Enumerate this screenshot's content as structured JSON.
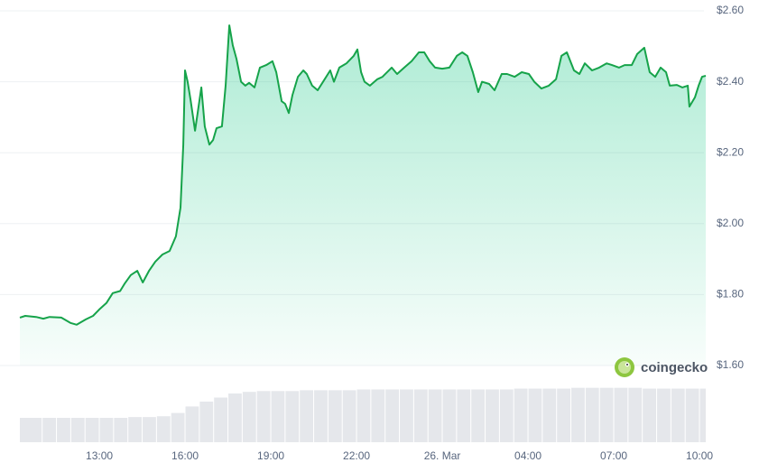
{
  "chart_data": {
    "type": "line",
    "x": [
      10.22,
      10.41,
      10.79,
      11.04,
      11.26,
      11.67,
      11.99,
      12.21,
      12.53,
      12.78,
      13.0,
      13.25,
      13.47,
      13.73,
      13.88,
      14.1,
      14.33,
      14.52,
      14.74,
      14.96,
      15.21,
      15.46,
      15.68,
      15.84,
      15.94,
      16.0,
      16.09,
      16.19,
      16.35,
      16.44,
      16.57,
      16.69,
      16.85,
      16.98,
      17.1,
      17.29,
      17.42,
      17.55,
      17.67,
      17.8,
      17.96,
      18.11,
      18.24,
      18.43,
      18.62,
      18.84,
      19.06,
      19.19,
      19.38,
      19.5,
      19.63,
      19.76,
      19.95,
      20.14,
      20.26,
      20.45,
      20.64,
      20.83,
      21.08,
      21.21,
      21.4,
      21.65,
      21.9,
      22.03,
      22.16,
      22.28,
      22.47,
      22.73,
      22.91,
      23.23,
      23.42,
      23.67,
      23.93,
      24.18,
      24.37,
      24.56,
      24.75,
      25.0,
      25.25,
      25.51,
      25.7,
      25.88,
      26.07,
      26.26,
      26.39,
      26.64,
      26.83,
      27.08,
      27.27,
      27.53,
      27.78,
      28.03,
      28.22,
      28.47,
      28.73,
      28.98,
      29.17,
      29.36,
      29.61,
      29.8,
      29.99,
      30.24,
      30.49,
      30.75,
      30.94,
      31.19,
      31.38,
      31.63,
      31.82,
      32.07,
      32.26,
      32.45,
      32.64,
      32.83,
      32.96,
      33.21,
      33.4,
      33.59,
      33.65,
      33.84,
      33.97,
      34.09,
      34.22
    ],
    "series": [
      {
        "color": "#16a34a",
        "fill": "#16c784",
        "values": [
          1.735,
          1.74,
          1.737,
          1.732,
          1.737,
          1.735,
          1.72,
          1.715,
          1.73,
          1.74,
          1.758,
          1.776,
          1.804,
          1.81,
          1.83,
          1.855,
          1.867,
          1.834,
          1.867,
          1.893,
          1.913,
          1.923,
          1.964,
          2.045,
          2.223,
          2.432,
          2.4,
          2.35,
          2.262,
          2.312,
          2.384,
          2.274,
          2.223,
          2.236,
          2.269,
          2.274,
          2.389,
          2.559,
          2.503,
          2.465,
          2.4,
          2.389,
          2.397,
          2.384,
          2.44,
          2.447,
          2.458,
          2.427,
          2.345,
          2.338,
          2.312,
          2.363,
          2.414,
          2.432,
          2.422,
          2.389,
          2.376,
          2.4,
          2.432,
          2.4,
          2.44,
          2.452,
          2.473,
          2.491,
          2.427,
          2.4,
          2.389,
          2.407,
          2.414,
          2.44,
          2.422,
          2.44,
          2.458,
          2.483,
          2.483,
          2.458,
          2.44,
          2.437,
          2.44,
          2.473,
          2.483,
          2.473,
          2.427,
          2.371,
          2.4,
          2.394,
          2.376,
          2.422,
          2.422,
          2.414,
          2.427,
          2.422,
          2.4,
          2.381,
          2.389,
          2.407,
          2.473,
          2.483,
          2.432,
          2.422,
          2.452,
          2.432,
          2.44,
          2.452,
          2.447,
          2.44,
          2.447,
          2.447,
          2.478,
          2.496,
          2.427,
          2.414,
          2.44,
          2.427,
          2.389,
          2.391,
          2.384,
          2.389,
          2.33,
          2.356,
          2.389,
          2.414,
          2.417
        ]
      }
    ],
    "volume": {
      "color": "#e5e7eb",
      "x": [
        10.25,
        10.75,
        11.25,
        11.75,
        12.25,
        12.75,
        13.25,
        13.75,
        14.25,
        14.75,
        15.25,
        15.75,
        16.25,
        16.75,
        17.25,
        17.75,
        18.25,
        18.75,
        19.25,
        19.75,
        20.25,
        20.75,
        21.25,
        21.75,
        22.25,
        22.75,
        23.25,
        23.75,
        24.25,
        24.75,
        25.25,
        25.75,
        26.25,
        26.75,
        27.25,
        27.75,
        28.25,
        28.75,
        29.25,
        29.75,
        30.25,
        30.75,
        31.25,
        31.75,
        32.25,
        32.75,
        33.25,
        33.75,
        34.25
      ],
      "values": [
        30,
        30,
        30,
        30,
        30,
        30,
        30,
        30,
        31,
        31,
        32,
        36,
        44,
        50,
        55,
        60,
        62,
        63,
        63,
        63,
        64,
        64,
        64,
        64,
        65,
        65,
        65,
        65,
        65,
        65,
        65,
        65,
        65,
        65,
        65,
        66,
        66,
        66,
        66,
        67,
        67,
        67,
        67,
        67,
        66,
        66,
        66,
        66,
        66
      ],
      "y2lim": [
        0,
        100
      ]
    },
    "xlim": [
      10.22,
      34.22
    ],
    "xticks": [
      {
        "value": 13,
        "label": "13:00"
      },
      {
        "value": 16,
        "label": "16:00"
      },
      {
        "value": 19,
        "label": "19:00"
      },
      {
        "value": 22,
        "label": "22:00"
      },
      {
        "value": 25,
        "label": "26. Mar"
      },
      {
        "value": 28,
        "label": "04:00"
      },
      {
        "value": 31,
        "label": "07:00"
      },
      {
        "value": 34,
        "label": "10:00"
      }
    ],
    "ylim": [
      1.6,
      2.6
    ],
    "yticks": [
      {
        "value": 1.6,
        "label": "$1.60"
      },
      {
        "value": 1.8,
        "label": "$1.80"
      },
      {
        "value": 2.0,
        "label": "$2.00"
      },
      {
        "value": 2.2,
        "label": "$2.20"
      },
      {
        "value": 2.4,
        "label": "$2.40"
      },
      {
        "value": 2.6,
        "label": "$2.60"
      }
    ],
    "grid": true,
    "watermark": "coingecko"
  }
}
